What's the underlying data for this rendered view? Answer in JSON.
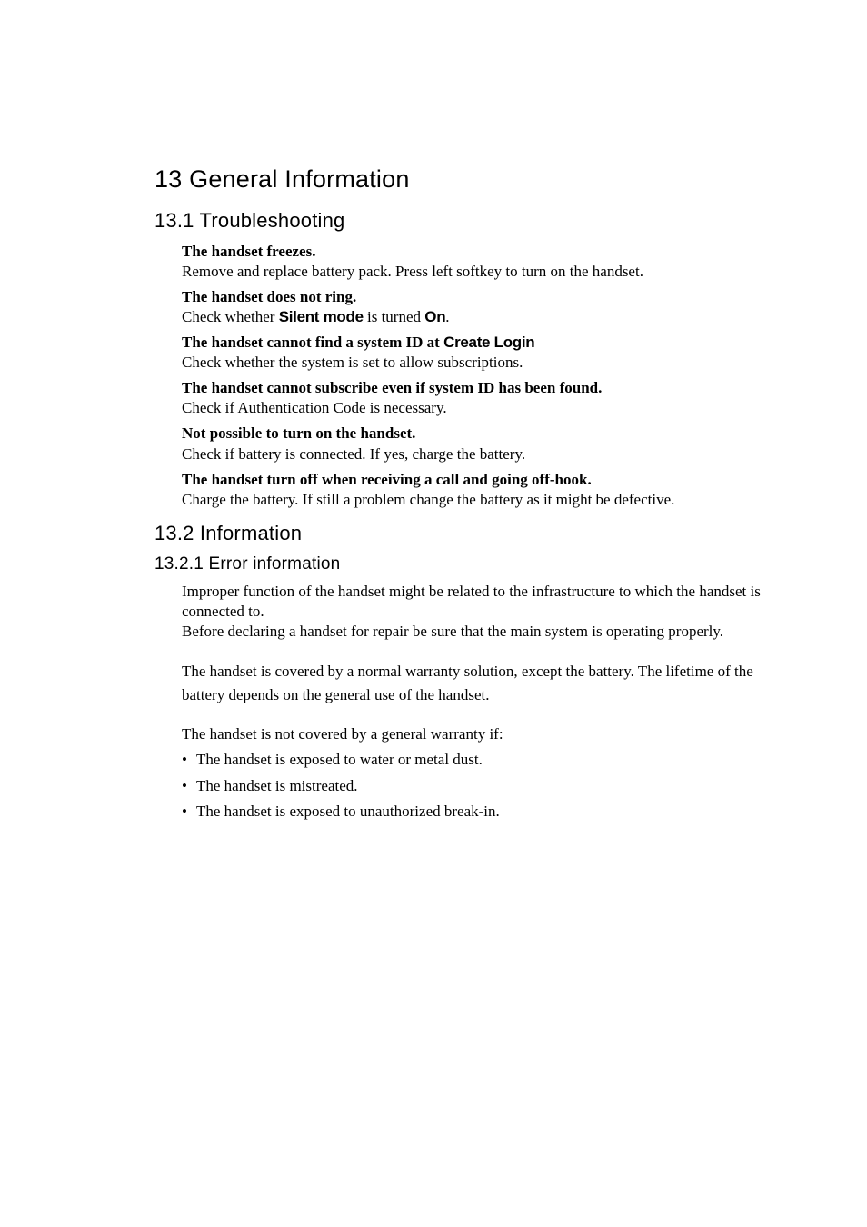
{
  "chapter": {
    "title": "13 General Information"
  },
  "s1": {
    "heading": "13.1  Troubleshooting",
    "items": {
      "i0": {
        "title": "The handset freezes.",
        "body": "Remove and replace battery pack. Press left softkey to turn on the handset."
      },
      "i1": {
        "title": "The handset does not ring.",
        "body_pre": "Check whether ",
        "mono1": "Silent mode",
        "body_mid": " is turned ",
        "mono2": "On",
        "body_post": "."
      },
      "i2": {
        "title_pre": "The handset cannot find a system ID at ",
        "title_mono": "Create Login",
        "body": "Check whether the system is set to allow subscriptions."
      },
      "i3": {
        "title": "The handset cannot subscribe even if system ID has been found.",
        "body": "Check if Authentication Code is necessary."
      },
      "i4": {
        "title": "Not possible to turn on the handset.",
        "body": "Check if battery is connected. If yes, charge the battery."
      },
      "i5": {
        "title": "The handset turn off when receiving a call and going off-hook.",
        "body": "Charge the battery. If still a problem change the battery as it might be defective."
      }
    }
  },
  "s2": {
    "heading": "13.2  Information",
    "sub": {
      "heading": "13.2.1  Error information",
      "p1": "Improper function of the handset might be related to the infrastructure to which the handset is connected to.",
      "p2": "Before declaring a handset for repair be sure that the main system is operating properly.",
      "p3": "The handset is covered by a normal warranty solution, except the battery. The lifetime of the battery depends on the general use of the handset.",
      "p4": "The handset is not covered by a general warranty if:",
      "bullets": {
        "b0": "The handset is exposed to water or metal dust.",
        "b1": "The handset is mistreated.",
        "b2": "The handset is exposed to unauthorized break-in."
      }
    }
  }
}
